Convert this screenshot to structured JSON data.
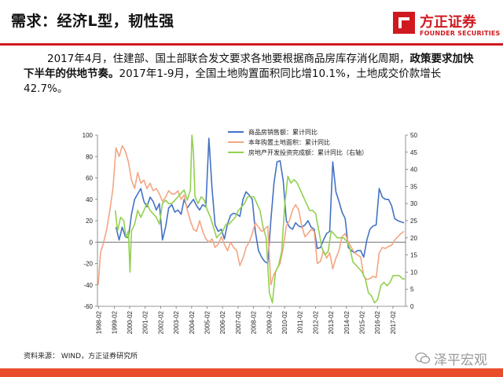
{
  "header": {
    "title": "需求：经济L型，韧性强",
    "logo_cn": "方正证券",
    "logo_en": "FOUNDER SECURITIES"
  },
  "paragraph": {
    "part1": "2017年4月，住建部、国土部联合发文要求各地要根据商品房库存消化周期，",
    "part2_bold": "政策要求加快下半年的供地节奏。",
    "part3": "2017年1-9月，全国土地购置面积同比增10.1%，土地成交价款增长42.7%。"
  },
  "footer": {
    "source": "资料来源： WIND，方正证券研究所",
    "brand": "泽平宏观"
  },
  "colors": {
    "series1": "#4472c4",
    "series2": "#f4a582",
    "series3": "#92d050",
    "brand_red": "#d0191f",
    "footer": "#e94d2c"
  },
  "chart_data": {
    "type": "line",
    "x_tick_labels": [
      "1998-02",
      "1999-02",
      "2000-02",
      "2001-02",
      "2002-02",
      "2003-02",
      "2004-02",
      "2005-02",
      "2006-02",
      "2007-02",
      "2008-02",
      "2009-02",
      "2010-02",
      "2011-02",
      "2012-02",
      "2013-02",
      "2014-02",
      "2015-02",
      "2016-02",
      "2017-02"
    ],
    "x_range": [
      1998.0,
      2017.9
    ],
    "y_left": {
      "min": -60,
      "max": 100,
      "ticks": [
        -60,
        -40,
        -20,
        0,
        20,
        40,
        60,
        80,
        100
      ]
    },
    "y_right": {
      "min": 0,
      "max": 50,
      "ticks": [
        0,
        5,
        10,
        15,
        20,
        25,
        30,
        35,
        40,
        45,
        50
      ]
    },
    "legend_placement": "top-center",
    "series": [
      {
        "name": "商品房销售额：累计同比",
        "axis": "left",
        "color": "#4472c4",
        "points": [
          [
            1999.2,
            14
          ],
          [
            1999.4,
            2
          ],
          [
            1999.6,
            14
          ],
          [
            1999.8,
            5
          ],
          [
            2000.0,
            4
          ],
          [
            2000.2,
            26
          ],
          [
            2000.4,
            40
          ],
          [
            2000.6,
            45
          ],
          [
            2000.8,
            50
          ],
          [
            2001.0,
            38
          ],
          [
            2001.2,
            33
          ],
          [
            2001.4,
            42
          ],
          [
            2001.6,
            38
          ],
          [
            2001.8,
            30
          ],
          [
            2002.0,
            36
          ],
          [
            2002.2,
            2
          ],
          [
            2002.4,
            14
          ],
          [
            2002.6,
            32
          ],
          [
            2002.8,
            35
          ],
          [
            2003.0,
            28
          ],
          [
            2003.2,
            30
          ],
          [
            2003.4,
            26
          ],
          [
            2003.6,
            40
          ],
          [
            2003.8,
            32
          ],
          [
            2004.0,
            36
          ],
          [
            2004.2,
            40
          ],
          [
            2004.4,
            34
          ],
          [
            2004.6,
            30
          ],
          [
            2004.8,
            35
          ],
          [
            2005.0,
            33
          ],
          [
            2005.2,
            97
          ],
          [
            2005.4,
            50
          ],
          [
            2005.6,
            16
          ],
          [
            2005.8,
            10
          ],
          [
            2006.0,
            12
          ],
          [
            2006.2,
            3
          ],
          [
            2006.4,
            17
          ],
          [
            2006.6,
            25
          ],
          [
            2006.8,
            27
          ],
          [
            2007.0,
            26
          ],
          [
            2007.2,
            24
          ],
          [
            2007.4,
            40
          ],
          [
            2007.6,
            47
          ],
          [
            2007.8,
            44
          ],
          [
            2008.0,
            40
          ],
          [
            2008.2,
            10
          ],
          [
            2008.4,
            -8
          ],
          [
            2008.6,
            -14
          ],
          [
            2008.8,
            -18
          ],
          [
            2009.0,
            -20
          ],
          [
            2009.2,
            20
          ],
          [
            2009.4,
            55
          ],
          [
            2009.6,
            75
          ],
          [
            2009.8,
            76
          ],
          [
            2010.0,
            57
          ],
          [
            2010.2,
            20
          ],
          [
            2010.4,
            14
          ],
          [
            2010.6,
            12
          ],
          [
            2010.8,
            18
          ],
          [
            2011.0,
            15
          ],
          [
            2011.2,
            14
          ],
          [
            2011.4,
            16
          ],
          [
            2011.6,
            20
          ],
          [
            2011.8,
            14
          ],
          [
            2012.0,
            12
          ],
          [
            2012.2,
            -6
          ],
          [
            2012.4,
            -5
          ],
          [
            2012.6,
            2
          ],
          [
            2012.8,
            8
          ],
          [
            2013.0,
            10
          ],
          [
            2013.2,
            75
          ],
          [
            2013.4,
            47
          ],
          [
            2013.6,
            38
          ],
          [
            2013.8,
            28
          ],
          [
            2014.0,
            22
          ],
          [
            2014.2,
            -5
          ],
          [
            2014.4,
            -8
          ],
          [
            2014.6,
            -10
          ],
          [
            2014.8,
            -8
          ],
          [
            2015.0,
            -8
          ],
          [
            2015.2,
            -14
          ],
          [
            2015.4,
            2
          ],
          [
            2015.6,
            12
          ],
          [
            2015.8,
            15
          ],
          [
            2016.0,
            16
          ],
          [
            2016.2,
            50
          ],
          [
            2016.4,
            42
          ],
          [
            2016.6,
            40
          ],
          [
            2016.8,
            40
          ],
          [
            2017.0,
            34
          ],
          [
            2017.2,
            22
          ],
          [
            2017.4,
            20
          ],
          [
            2017.6,
            19
          ],
          [
            2017.8,
            18
          ]
        ]
      },
      {
        "name": "本年购置土地面积：累计同比",
        "axis": "left",
        "color": "#f4a582",
        "points": [
          [
            1998.05,
            -40
          ],
          [
            1998.2,
            -10
          ],
          [
            1998.4,
            0
          ],
          [
            1998.6,
            12
          ],
          [
            1998.8,
            30
          ],
          [
            1999.0,
            50
          ],
          [
            1999.2,
            88
          ],
          [
            1999.4,
            80
          ],
          [
            1999.6,
            90
          ],
          [
            1999.8,
            85
          ],
          [
            2000.0,
            75
          ],
          [
            2000.2,
            58
          ],
          [
            2000.4,
            50
          ],
          [
            2000.6,
            65
          ],
          [
            2000.8,
            55
          ],
          [
            2001.0,
            58
          ],
          [
            2001.2,
            50
          ],
          [
            2001.4,
            55
          ],
          [
            2001.6,
            48
          ],
          [
            2001.8,
            50
          ],
          [
            2002.0,
            45
          ],
          [
            2002.2,
            38
          ],
          [
            2002.4,
            42
          ],
          [
            2002.6,
            48
          ],
          [
            2002.8,
            45
          ],
          [
            2003.0,
            45
          ],
          [
            2003.2,
            48
          ],
          [
            2003.4,
            40
          ],
          [
            2003.6,
            44
          ],
          [
            2003.8,
            30
          ],
          [
            2004.0,
            20
          ],
          [
            2004.2,
            12
          ],
          [
            2004.4,
            10
          ],
          [
            2004.6,
            20
          ],
          [
            2004.8,
            10
          ],
          [
            2005.0,
            3
          ],
          [
            2005.2,
            0
          ],
          [
            2005.4,
            3
          ],
          [
            2005.6,
            -5
          ],
          [
            2005.8,
            -2
          ],
          [
            2006.0,
            5
          ],
          [
            2006.2,
            -2
          ],
          [
            2006.4,
            -8
          ],
          [
            2006.6,
            0
          ],
          [
            2006.8,
            -5
          ],
          [
            2007.0,
            -8
          ],
          [
            2007.2,
            -22
          ],
          [
            2007.4,
            -15
          ],
          [
            2007.6,
            -5
          ],
          [
            2007.8,
            0
          ],
          [
            2008.0,
            8
          ],
          [
            2008.2,
            18
          ],
          [
            2008.4,
            14
          ],
          [
            2008.6,
            10
          ],
          [
            2008.8,
            12
          ],
          [
            2009.0,
            15
          ],
          [
            2009.2,
            -40
          ],
          [
            2009.4,
            -30
          ],
          [
            2009.6,
            -25
          ],
          [
            2009.8,
            -20
          ],
          [
            2010.0,
            -5
          ],
          [
            2010.2,
            15
          ],
          [
            2010.4,
            20
          ],
          [
            2010.6,
            30
          ],
          [
            2010.8,
            35
          ],
          [
            2011.0,
            30
          ],
          [
            2011.2,
            15
          ],
          [
            2011.4,
            5
          ],
          [
            2011.6,
            8
          ],
          [
            2011.8,
            12
          ],
          [
            2012.0,
            10
          ],
          [
            2012.2,
            -20
          ],
          [
            2012.4,
            -18
          ],
          [
            2012.6,
            -8
          ],
          [
            2012.8,
            -15
          ],
          [
            2013.0,
            -10
          ],
          [
            2013.2,
            -25
          ],
          [
            2013.4,
            -15
          ],
          [
            2013.6,
            -8
          ],
          [
            2013.8,
            5
          ],
          [
            2014.0,
            8
          ],
          [
            2014.2,
            0
          ],
          [
            2014.4,
            -5
          ],
          [
            2014.6,
            -10
          ],
          [
            2014.8,
            -12
          ],
          [
            2015.0,
            -14
          ],
          [
            2015.2,
            -32
          ],
          [
            2015.4,
            -35
          ],
          [
            2015.6,
            -34
          ],
          [
            2015.8,
            -32
          ],
          [
            2016.0,
            -33
          ],
          [
            2016.2,
            -10
          ],
          [
            2016.4,
            -5
          ],
          [
            2016.6,
            -6
          ],
          [
            2016.8,
            -4
          ],
          [
            2017.0,
            -3
          ],
          [
            2017.2,
            2
          ],
          [
            2017.4,
            5
          ],
          [
            2017.6,
            8
          ],
          [
            2017.8,
            10
          ]
        ]
      },
      {
        "name": "房地产开发投资完成额：累计同比（右轴）",
        "axis": "right",
        "color": "#92d050",
        "points": [
          [
            1999.15,
            28
          ],
          [
            1999.3,
            22
          ],
          [
            1999.5,
            26
          ],
          [
            1999.7,
            25
          ],
          [
            1999.85,
            20
          ],
          [
            2000.0,
            22
          ],
          [
            2000.1,
            10
          ],
          [
            2000.2,
            22
          ],
          [
            2000.4,
            24
          ],
          [
            2000.6,
            28
          ],
          [
            2000.8,
            26
          ],
          [
            2001.0,
            28
          ],
          [
            2001.2,
            30
          ],
          [
            2001.4,
            28
          ],
          [
            2001.6,
            27
          ],
          [
            2001.8,
            26
          ],
          [
            2002.0,
            24
          ],
          [
            2002.2,
            30
          ],
          [
            2002.4,
            31
          ],
          [
            2002.6,
            30
          ],
          [
            2002.8,
            30
          ],
          [
            2003.0,
            31
          ],
          [
            2003.2,
            32
          ],
          [
            2003.4,
            33
          ],
          [
            2003.6,
            34
          ],
          [
            2003.8,
            31
          ],
          [
            2004.0,
            34
          ],
          [
            2004.1,
            50
          ],
          [
            2004.2,
            45
          ],
          [
            2004.3,
            32
          ],
          [
            2004.5,
            30
          ],
          [
            2004.7,
            32
          ],
          [
            2004.9,
            31
          ],
          [
            2005.1,
            28
          ],
          [
            2005.3,
            26
          ],
          [
            2005.5,
            23
          ],
          [
            2005.7,
            20
          ],
          [
            2005.9,
            21
          ],
          [
            2006.1,
            22
          ],
          [
            2006.3,
            24
          ],
          [
            2006.5,
            24
          ],
          [
            2006.7,
            25
          ],
          [
            2006.9,
            26
          ],
          [
            2007.1,
            28
          ],
          [
            2007.3,
            29
          ],
          [
            2007.5,
            30
          ],
          [
            2007.7,
            32
          ],
          [
            2007.9,
            32
          ],
          [
            2008.1,
            32
          ],
          [
            2008.3,
            30
          ],
          [
            2008.5,
            28
          ],
          [
            2008.7,
            23
          ],
          [
            2008.9,
            20
          ],
          [
            2009.1,
            4
          ],
          [
            2009.3,
            1
          ],
          [
            2009.5,
            10
          ],
          [
            2009.7,
            12
          ],
          [
            2009.9,
            16
          ],
          [
            2010.1,
            30
          ],
          [
            2010.3,
            38
          ],
          [
            2010.5,
            36
          ],
          [
            2010.7,
            37
          ],
          [
            2010.9,
            36
          ],
          [
            2011.1,
            34
          ],
          [
            2011.3,
            32
          ],
          [
            2011.5,
            30
          ],
          [
            2011.7,
            28
          ],
          [
            2011.9,
            28
          ],
          [
            2012.1,
            27
          ],
          [
            2012.3,
            22
          ],
          [
            2012.5,
            17
          ],
          [
            2012.7,
            15
          ],
          [
            2012.9,
            16
          ],
          [
            2013.1,
            22
          ],
          [
            2013.3,
            21
          ],
          [
            2013.5,
            20
          ],
          [
            2013.7,
            20
          ],
          [
            2013.9,
            20
          ],
          [
            2014.1,
            19
          ],
          [
            2014.3,
            17
          ],
          [
            2014.5,
            13
          ],
          [
            2014.7,
            12
          ],
          [
            2014.9,
            11
          ],
          [
            2015.1,
            10
          ],
          [
            2015.3,
            8
          ],
          [
            2015.5,
            4
          ],
          [
            2015.7,
            3
          ],
          [
            2015.9,
            1
          ],
          [
            2016.1,
            2
          ],
          [
            2016.3,
            6
          ],
          [
            2016.5,
            7
          ],
          [
            2016.7,
            6
          ],
          [
            2016.9,
            7
          ],
          [
            2017.1,
            9
          ],
          [
            2017.3,
            9
          ],
          [
            2017.5,
            9
          ],
          [
            2017.7,
            8
          ],
          [
            2017.85,
            8
          ]
        ]
      }
    ]
  }
}
